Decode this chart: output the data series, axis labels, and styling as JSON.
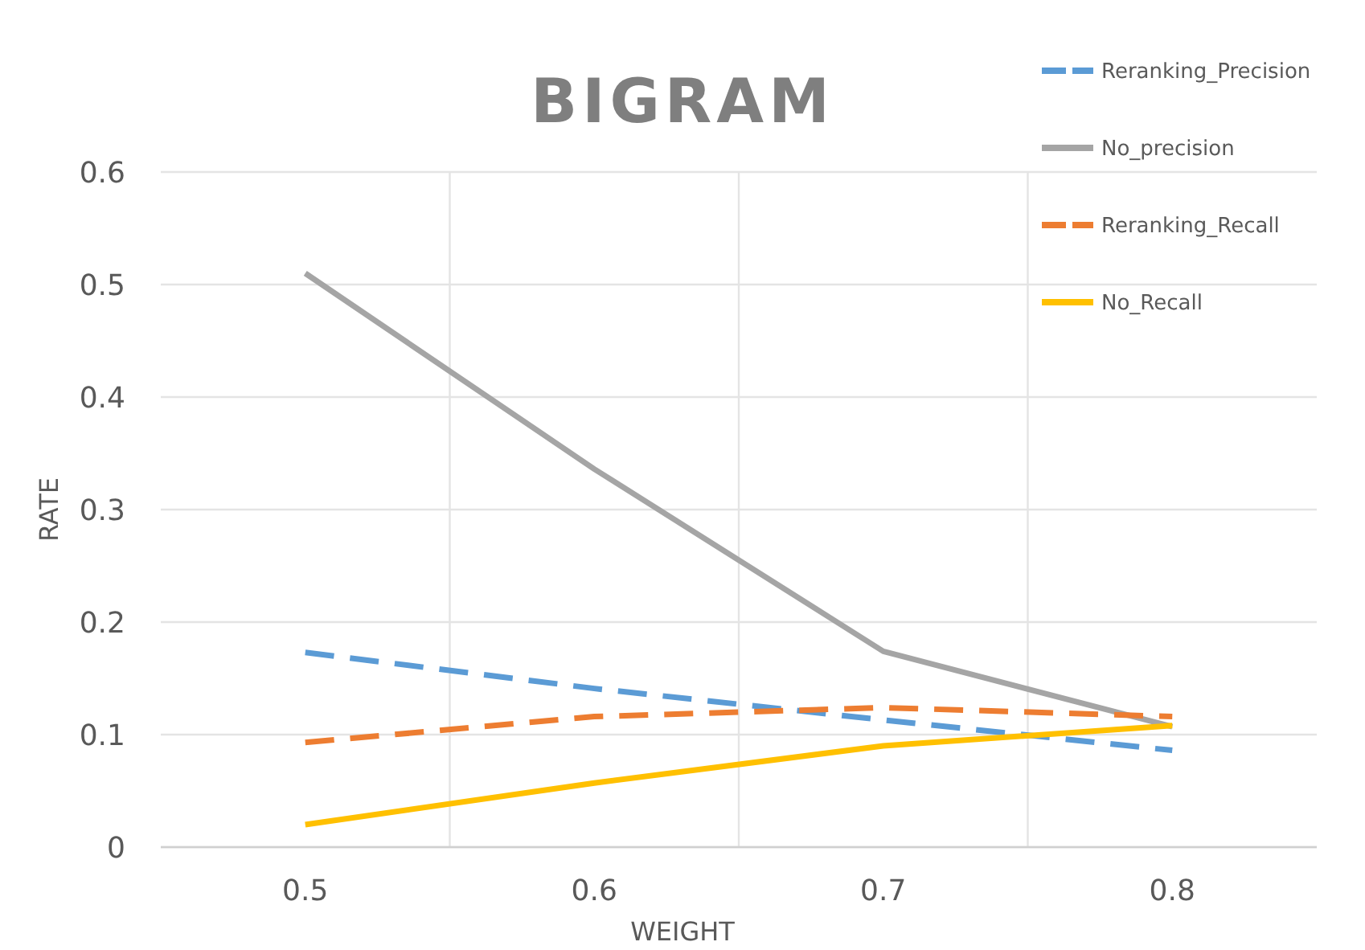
{
  "chart_data": {
    "type": "line",
    "title": "BIGRAM",
    "xlabel": "WEIGHT",
    "ylabel": "RATE",
    "categories": [
      "0.5",
      "0.6",
      "0.7",
      "0.8"
    ],
    "series": [
      {
        "name": "Reranking_Precision",
        "color": "#5b9bd5",
        "line_style": "dashed",
        "values": [
          0.173,
          0.141,
          0.113,
          0.086
        ]
      },
      {
        "name": "No_precision",
        "color": "#a5a5a5",
        "line_style": "solid",
        "values": [
          0.51,
          0.336,
          0.174,
          0.107
        ]
      },
      {
        "name": "Reranking_Recall",
        "color": "#ed7d31",
        "line_style": "dashed",
        "values": [
          0.093,
          0.116,
          0.124,
          0.116
        ]
      },
      {
        "name": "No_Recall",
        "color": "#ffc000",
        "line_style": "solid",
        "values": [
          0.02,
          0.057,
          0.09,
          0.108
        ]
      }
    ],
    "ylim": [
      0,
      0.6
    ],
    "yticks": [
      0,
      0.1,
      0.2,
      0.3,
      0.4,
      0.5,
      0.6
    ],
    "grid": true,
    "legend": "top right"
  }
}
